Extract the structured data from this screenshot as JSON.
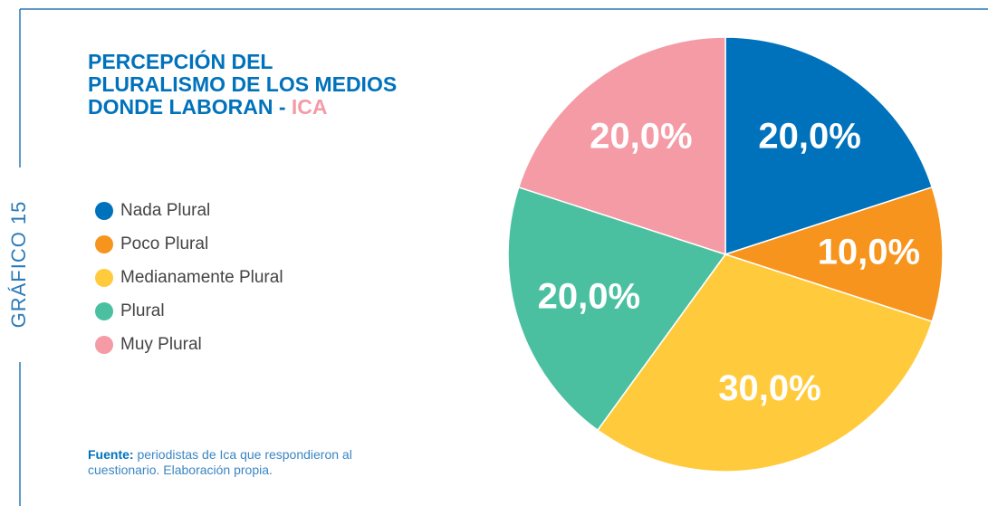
{
  "chart_data": {
    "type": "pie",
    "side_label": "GRÁFICO 15",
    "title": [
      "PERCEPCIÓN DEL",
      "PLURALISMO DE LOS MEDIOS",
      "DONDE LABORAN - "
    ],
    "title_highlight": "ICA",
    "categories": [
      "Nada Plural",
      "Poco Plural",
      "Medianamente Plural",
      "Plural",
      "Muy Plural"
    ],
    "values": [
      20,
      10,
      30,
      20,
      20
    ],
    "value_labels": [
      "20,0%",
      "10,0%",
      "30,0%",
      "20,0%",
      "20,0%"
    ],
    "colors": [
      "#0072bc",
      "#f7941d",
      "#ffcb3d",
      "#4bc0a0",
      "#f49ba6"
    ],
    "legend": "left",
    "source_label": "Fuente:",
    "source": "periodistas de Ica que respondieron al cuestionario. Elaboración propia."
  }
}
